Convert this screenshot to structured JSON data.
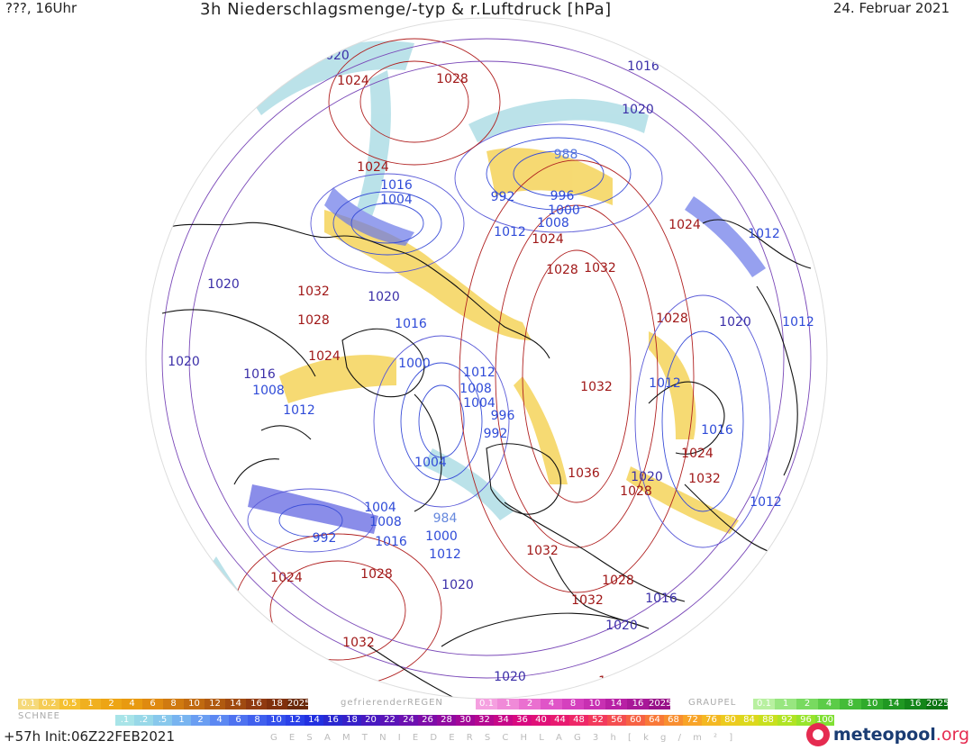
{
  "header": {
    "left": "???, 16Uhr",
    "title": "3h Niederschlagsmenge/-typ & r.Luftdruck [hPa]",
    "date": "24. Februar 2021"
  },
  "map": {
    "pressure_labels": [
      {
        "text": "1020",
        "color": "#3b2fa8"
      },
      {
        "text": "1024",
        "color": "#a01818"
      },
      {
        "text": "1028",
        "color": "#a01818"
      },
      {
        "text": "1016",
        "color": "#3b2fa8"
      },
      {
        "text": "1020",
        "color": "#3b2fa8"
      },
      {
        "text": "1024",
        "color": "#a01818"
      },
      {
        "text": "1016",
        "color": "#2f4bd8"
      },
      {
        "text": "1004",
        "color": "#2f4bd8"
      },
      {
        "text": "988",
        "color": "#5577dd"
      },
      {
        "text": "992",
        "color": "#2f4bd8"
      },
      {
        "text": "996",
        "color": "#2f4bd8"
      },
      {
        "text": "1000",
        "color": "#2f4bd8"
      },
      {
        "text": "1008",
        "color": "#2f4bd8"
      },
      {
        "text": "1012",
        "color": "#2f4bd8"
      },
      {
        "text": "1024",
        "color": "#a01818"
      },
      {
        "text": "1032",
        "color": "#a01818"
      },
      {
        "text": "1024",
        "color": "#a01818"
      },
      {
        "text": "1012",
        "color": "#2f4bd8"
      },
      {
        "text": "1028",
        "color": "#a01818"
      },
      {
        "text": "1020",
        "color": "#3b2fa8"
      },
      {
        "text": "1032",
        "color": "#a01818"
      },
      {
        "text": "1028",
        "color": "#a01818"
      },
      {
        "text": "1020",
        "color": "#3b2fa8"
      },
      {
        "text": "1016",
        "color": "#2f4bd8"
      },
      {
        "text": "1028",
        "color": "#a01818"
      },
      {
        "text": "1020",
        "color": "#3b2fa8"
      },
      {
        "text": "1012",
        "color": "#2f4bd8"
      },
      {
        "text": "1024",
        "color": "#a01818"
      },
      {
        "text": "1020",
        "color": "#3b2fa8"
      },
      {
        "text": "1000",
        "color": "#2f4bd8"
      },
      {
        "text": "1012",
        "color": "#2f4bd8"
      },
      {
        "text": "1008",
        "color": "#2f4bd8"
      },
      {
        "text": "1004",
        "color": "#2f4bd8"
      },
      {
        "text": "996",
        "color": "#2f4bd8"
      },
      {
        "text": "992",
        "color": "#2f4bd8"
      },
      {
        "text": "1032",
        "color": "#a01818"
      },
      {
        "text": "1012",
        "color": "#2f4bd8"
      },
      {
        "text": "1016",
        "color": "#3b2fa8"
      },
      {
        "text": "1008",
        "color": "#2f4bd8"
      },
      {
        "text": "1012",
        "color": "#2f4bd8"
      },
      {
        "text": "1004",
        "color": "#2f4bd8"
      },
      {
        "text": "1016",
        "color": "#2f4bd8"
      },
      {
        "text": "1024",
        "color": "#a01818"
      },
      {
        "text": "1036",
        "color": "#a01818"
      },
      {
        "text": "1020",
        "color": "#3b2fa8"
      },
      {
        "text": "1028",
        "color": "#a01818"
      },
      {
        "text": "1032",
        "color": "#a01818"
      },
      {
        "text": "1012",
        "color": "#2f4bd8"
      },
      {
        "text": "1004",
        "color": "#2f4bd8"
      },
      {
        "text": "1008",
        "color": "#2f4bd8"
      },
      {
        "text": "984",
        "color": "#6688dd"
      },
      {
        "text": "992",
        "color": "#2f4bd8"
      },
      {
        "text": "1016",
        "color": "#2f4bd8"
      },
      {
        "text": "1000",
        "color": "#2f4bd8"
      },
      {
        "text": "1012",
        "color": "#2f4bd8"
      },
      {
        "text": "1032",
        "color": "#a01818"
      },
      {
        "text": "1024",
        "color": "#a01818"
      },
      {
        "text": "1028",
        "color": "#a01818"
      },
      {
        "text": "1020",
        "color": "#3b2fa8"
      },
      {
        "text": "1028",
        "color": "#a01818"
      },
      {
        "text": "1032",
        "color": "#a01818"
      },
      {
        "text": "1016",
        "color": "#3b2fa8"
      },
      {
        "text": "1020",
        "color": "#3b2fa8"
      },
      {
        "text": "1032",
        "color": "#a01818"
      },
      {
        "text": "1024",
        "color": "#a01818"
      },
      {
        "text": "1020",
        "color": "#3b2fa8"
      },
      {
        "text": "1024",
        "color": "#a01818"
      }
    ]
  },
  "legend": {
    "snow": {
      "label": "SCHNEE",
      "values": [
        "0.1",
        "0.2",
        "0.5",
        "1",
        "2",
        "4",
        "6",
        "8",
        "10",
        "12",
        "14",
        "16",
        "18",
        "2025+"
      ],
      "colors": [
        "#f5d97a",
        "#f5cc55",
        "#f5c030",
        "#f0b020",
        "#eda515",
        "#e89a10",
        "#df8a10",
        "#d07a10",
        "#c06a10",
        "#b05a10",
        "#a04a10",
        "#903a10",
        "#80300c",
        "#6a2808"
      ]
    },
    "freezing_rain": {
      "label": "gefrierenderREGEN",
      "values": [
        "0.1",
        "1",
        "2",
        "4",
        "8",
        "10",
        "14",
        "16",
        "2025+"
      ],
      "colors": [
        "#f5a0e0",
        "#f08ad8",
        "#ea70d0",
        "#e055c8",
        "#d540be",
        "#c830b2",
        "#b820a5",
        "#a81898",
        "#981088"
      ]
    },
    "graupel": {
      "label": "GRAUPEL",
      "values": [
        "0.1",
        "1",
        "2",
        "4",
        "8",
        "10",
        "14",
        "16",
        "2025+"
      ],
      "colors": [
        "#b8f0a0",
        "#98e680",
        "#78da60",
        "#5ccc48",
        "#44bc38",
        "#30aa2c",
        "#209822",
        "#14861a",
        "#0a7412"
      ]
    },
    "total": {
      "label": "G E S A M T N I E D E R S C H L A G   3 h   [ k g / m ² ]",
      "values": [
        ".1",
        ".2",
        ".5",
        "1",
        "2",
        "4",
        "6",
        "8",
        "10",
        "12",
        "14",
        "16",
        "18",
        "20",
        "22",
        "24",
        "26",
        "28",
        "30",
        "32",
        "34",
        "36",
        "40",
        "44",
        "48",
        "52",
        "56",
        "60",
        "64",
        "68",
        "72",
        "76",
        "80",
        "84",
        "88",
        "92",
        "96",
        "100"
      ],
      "colors": [
        "#a8e4e8",
        "#98d8e8",
        "#88c8ec",
        "#78b4f0",
        "#6a9ef2",
        "#5c88f2",
        "#4e72f0",
        "#4060ee",
        "#3450ec",
        "#2a40e8",
        "#2230e0",
        "#2a28d0",
        "#3620c8",
        "#4818c0",
        "#5a14b8",
        "#6c10b0",
        "#7e0ca8",
        "#900aa0",
        "#a20898",
        "#b40890",
        "#c60888",
        "#d80a80",
        "#e01078",
        "#e81a70",
        "#ee2868",
        "#f23a5c",
        "#f44e50",
        "#f66244",
        "#f87838",
        "#f88e30",
        "#f8a428",
        "#f4b822",
        "#eccb1e",
        "#dcd81c",
        "#c8e01e",
        "#b0e424",
        "#98e42c",
        "#80e034"
      ]
    }
  },
  "footer": {
    "left": "+57h  Init:06Z22FEB2021",
    "brand_main": "meteopool",
    "brand_suffix": ".org"
  }
}
